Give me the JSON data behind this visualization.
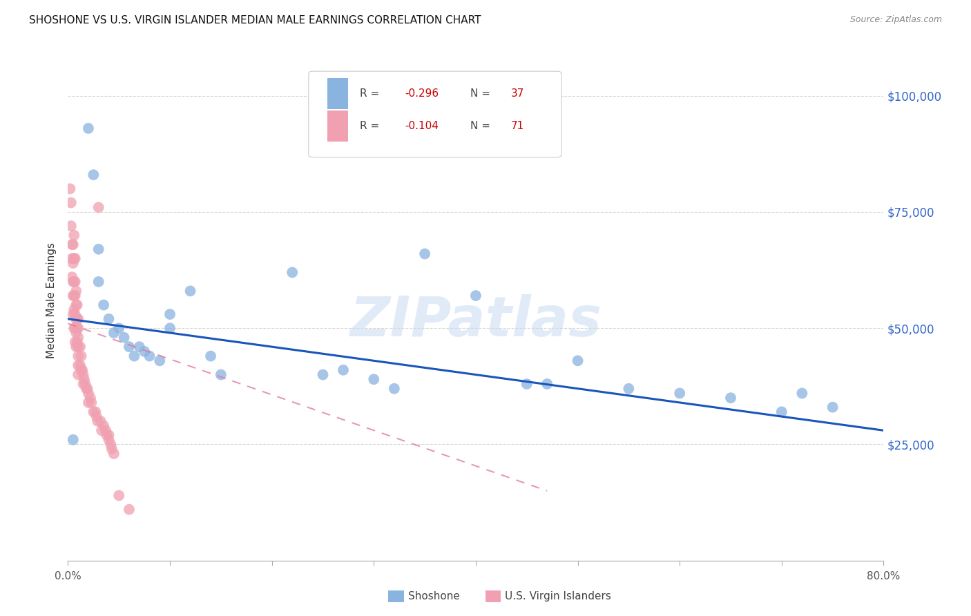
{
  "title": "SHOSHONE VS U.S. VIRGIN ISLANDER MEDIAN MALE EARNINGS CORRELATION CHART",
  "source": "Source: ZipAtlas.com",
  "ylabel": "Median Male Earnings",
  "xlim": [
    0.0,
    0.8
  ],
  "ylim": [
    0,
    112000
  ],
  "yticks": [
    0,
    25000,
    50000,
    75000,
    100000
  ],
  "ytick_labels_right": [
    "",
    "$25,000",
    "$50,000",
    "$75,000",
    "$100,000"
  ],
  "xticks": [
    0.0,
    0.1,
    0.2,
    0.3,
    0.4,
    0.5,
    0.6,
    0.7,
    0.8
  ],
  "xtick_labels": [
    "0.0%",
    "",
    "",
    "",
    "",
    "",
    "",
    "",
    "80.0%"
  ],
  "shoshone_color": "#8ab4e0",
  "vi_color": "#f0a0b0",
  "regression_blue": "#1a55bb",
  "regression_pink": "#dd7799",
  "watermark": "ZIPatlas",
  "shoshone_label": "Shoshone",
  "vi_label": "U.S. Virgin Islanders",
  "legend_R1": "R = -0.296",
  "legend_N1": "N = 37",
  "legend_R2": "R = -0.104",
  "legend_N2": "N = 71",
  "blue_trendline_x": [
    0.0,
    0.8
  ],
  "blue_trendline_y": [
    52000,
    28000
  ],
  "pink_trendline_x": [
    0.0,
    0.47
  ],
  "pink_trendline_y": [
    51000,
    15000
  ],
  "shoshone_x": [
    0.005,
    0.02,
    0.025,
    0.03,
    0.03,
    0.035,
    0.04,
    0.045,
    0.05,
    0.055,
    0.06,
    0.065,
    0.07,
    0.075,
    0.08,
    0.09,
    0.1,
    0.1,
    0.12,
    0.14,
    0.15,
    0.22,
    0.25,
    0.27,
    0.3,
    0.32,
    0.35,
    0.4,
    0.45,
    0.47,
    0.5,
    0.55,
    0.6,
    0.65,
    0.7,
    0.72,
    0.75
  ],
  "shoshone_y": [
    26000,
    93000,
    83000,
    67000,
    60000,
    55000,
    52000,
    49000,
    50000,
    48000,
    46000,
    44000,
    46000,
    45000,
    44000,
    43000,
    53000,
    50000,
    58000,
    44000,
    40000,
    62000,
    40000,
    41000,
    39000,
    37000,
    66000,
    57000,
    38000,
    38000,
    43000,
    37000,
    36000,
    35000,
    32000,
    36000,
    33000
  ],
  "vi_x": [
    0.002,
    0.003,
    0.003,
    0.004,
    0.004,
    0.004,
    0.005,
    0.005,
    0.005,
    0.005,
    0.005,
    0.006,
    0.006,
    0.006,
    0.006,
    0.006,
    0.006,
    0.007,
    0.007,
    0.007,
    0.007,
    0.007,
    0.007,
    0.008,
    0.008,
    0.008,
    0.008,
    0.008,
    0.009,
    0.009,
    0.009,
    0.009,
    0.01,
    0.01,
    0.01,
    0.01,
    0.01,
    0.01,
    0.01,
    0.012,
    0.012,
    0.013,
    0.013,
    0.014,
    0.015,
    0.015,
    0.016,
    0.017,
    0.018,
    0.019,
    0.02,
    0.02,
    0.022,
    0.023,
    0.025,
    0.027,
    0.028,
    0.029,
    0.03,
    0.032,
    0.033,
    0.035,
    0.037,
    0.038,
    0.04,
    0.04,
    0.042,
    0.043,
    0.045,
    0.05,
    0.06
  ],
  "vi_y": [
    80000,
    77000,
    72000,
    68000,
    65000,
    61000,
    68000,
    64000,
    60000,
    57000,
    53000,
    70000,
    65000,
    60000,
    57000,
    54000,
    50000,
    65000,
    60000,
    57000,
    53000,
    50000,
    47000,
    58000,
    55000,
    52000,
    49000,
    46000,
    55000,
    52000,
    50000,
    47000,
    52000,
    50000,
    48000,
    46000,
    44000,
    42000,
    40000,
    46000,
    42000,
    44000,
    41000,
    41000,
    40000,
    38000,
    39000,
    38000,
    37000,
    37000,
    36000,
    34000,
    35000,
    34000,
    32000,
    32000,
    31000,
    30000,
    76000,
    30000,
    28000,
    29000,
    28000,
    27000,
    27000,
    26000,
    25000,
    24000,
    23000,
    14000,
    11000
  ]
}
